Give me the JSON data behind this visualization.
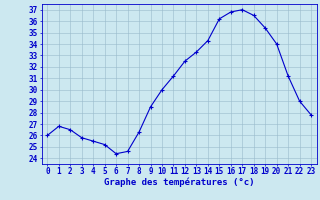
{
  "hours": [
    0,
    1,
    2,
    3,
    4,
    5,
    6,
    7,
    8,
    9,
    10,
    11,
    12,
    13,
    14,
    15,
    16,
    17,
    18,
    19,
    20,
    21,
    22,
    23
  ],
  "temps": [
    26.0,
    26.8,
    26.5,
    25.8,
    25.5,
    25.2,
    24.4,
    24.6,
    26.3,
    28.5,
    30.0,
    31.2,
    32.5,
    33.3,
    34.3,
    36.2,
    36.8,
    37.0,
    36.5,
    35.4,
    34.0,
    31.2,
    29.0,
    27.8
  ],
  "line_color": "#0000cc",
  "marker": "+",
  "marker_color": "#0000cc",
  "bg_color": "#cce8f0",
  "grid_color": "#99bbcc",
  "xlabel": "Graphe des températures (°c)",
  "ylabel_ticks": [
    24,
    25,
    26,
    27,
    28,
    29,
    30,
    31,
    32,
    33,
    34,
    35,
    36,
    37
  ],
  "ylim": [
    23.5,
    37.5
  ],
  "xlim": [
    -0.5,
    23.5
  ],
  "tick_color": "#0000cc",
  "label_color": "#0000cc",
  "axis_color": "#0000cc",
  "tick_fontsize": 5.5,
  "label_fontsize": 6.5
}
